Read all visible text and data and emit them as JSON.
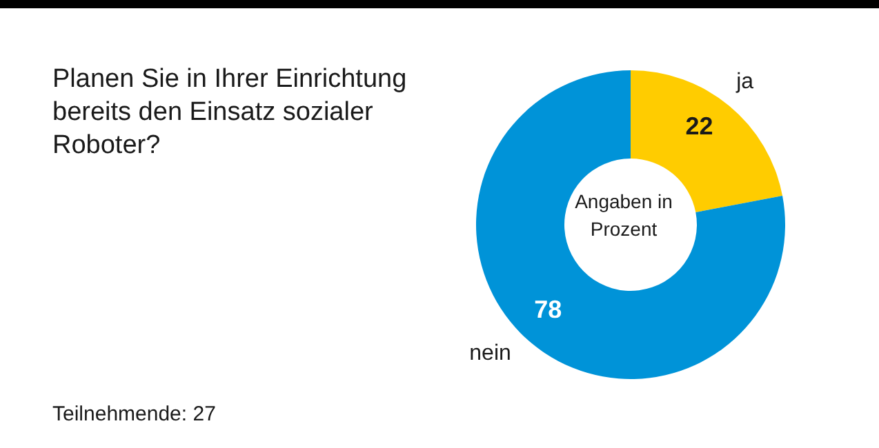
{
  "chart_data": {
    "type": "donut",
    "title": "Planen Sie in Ihrer Einrichtung bereits den Einsatz sozialer Roboter?",
    "categories": [
      "ja",
      "nein"
    ],
    "values": [
      22,
      78
    ],
    "colors": [
      "#ffcc00",
      "#0093d8"
    ],
    "data_labels": true,
    "annotations": [
      "Angaben in Prozent",
      "Teilnehmende: 27"
    ]
  }
}
